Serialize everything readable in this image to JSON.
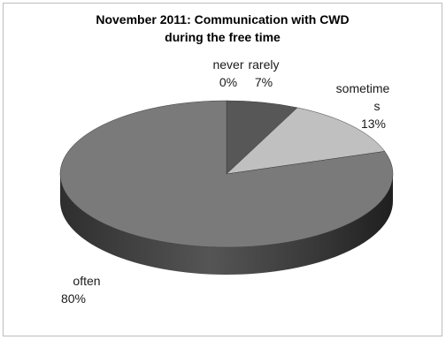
{
  "chart_data": {
    "type": "pie",
    "title_lines": [
      "November 2011: Communication with CWD",
      "during the free time"
    ],
    "slices": [
      {
        "label": "never",
        "value": 0,
        "value_label": "0%",
        "color": "#4d4d4d"
      },
      {
        "label": "rarely",
        "value": 7,
        "value_label": "7%",
        "color": "#575757"
      },
      {
        "label": "sometime s",
        "value": 13,
        "value_label": "13%",
        "color": "#c0c0c0"
      },
      {
        "label": "often",
        "value": 80,
        "value_label": "80%",
        "color": "#7a7a7a"
      }
    ],
    "style": "3d",
    "legend": "none"
  }
}
